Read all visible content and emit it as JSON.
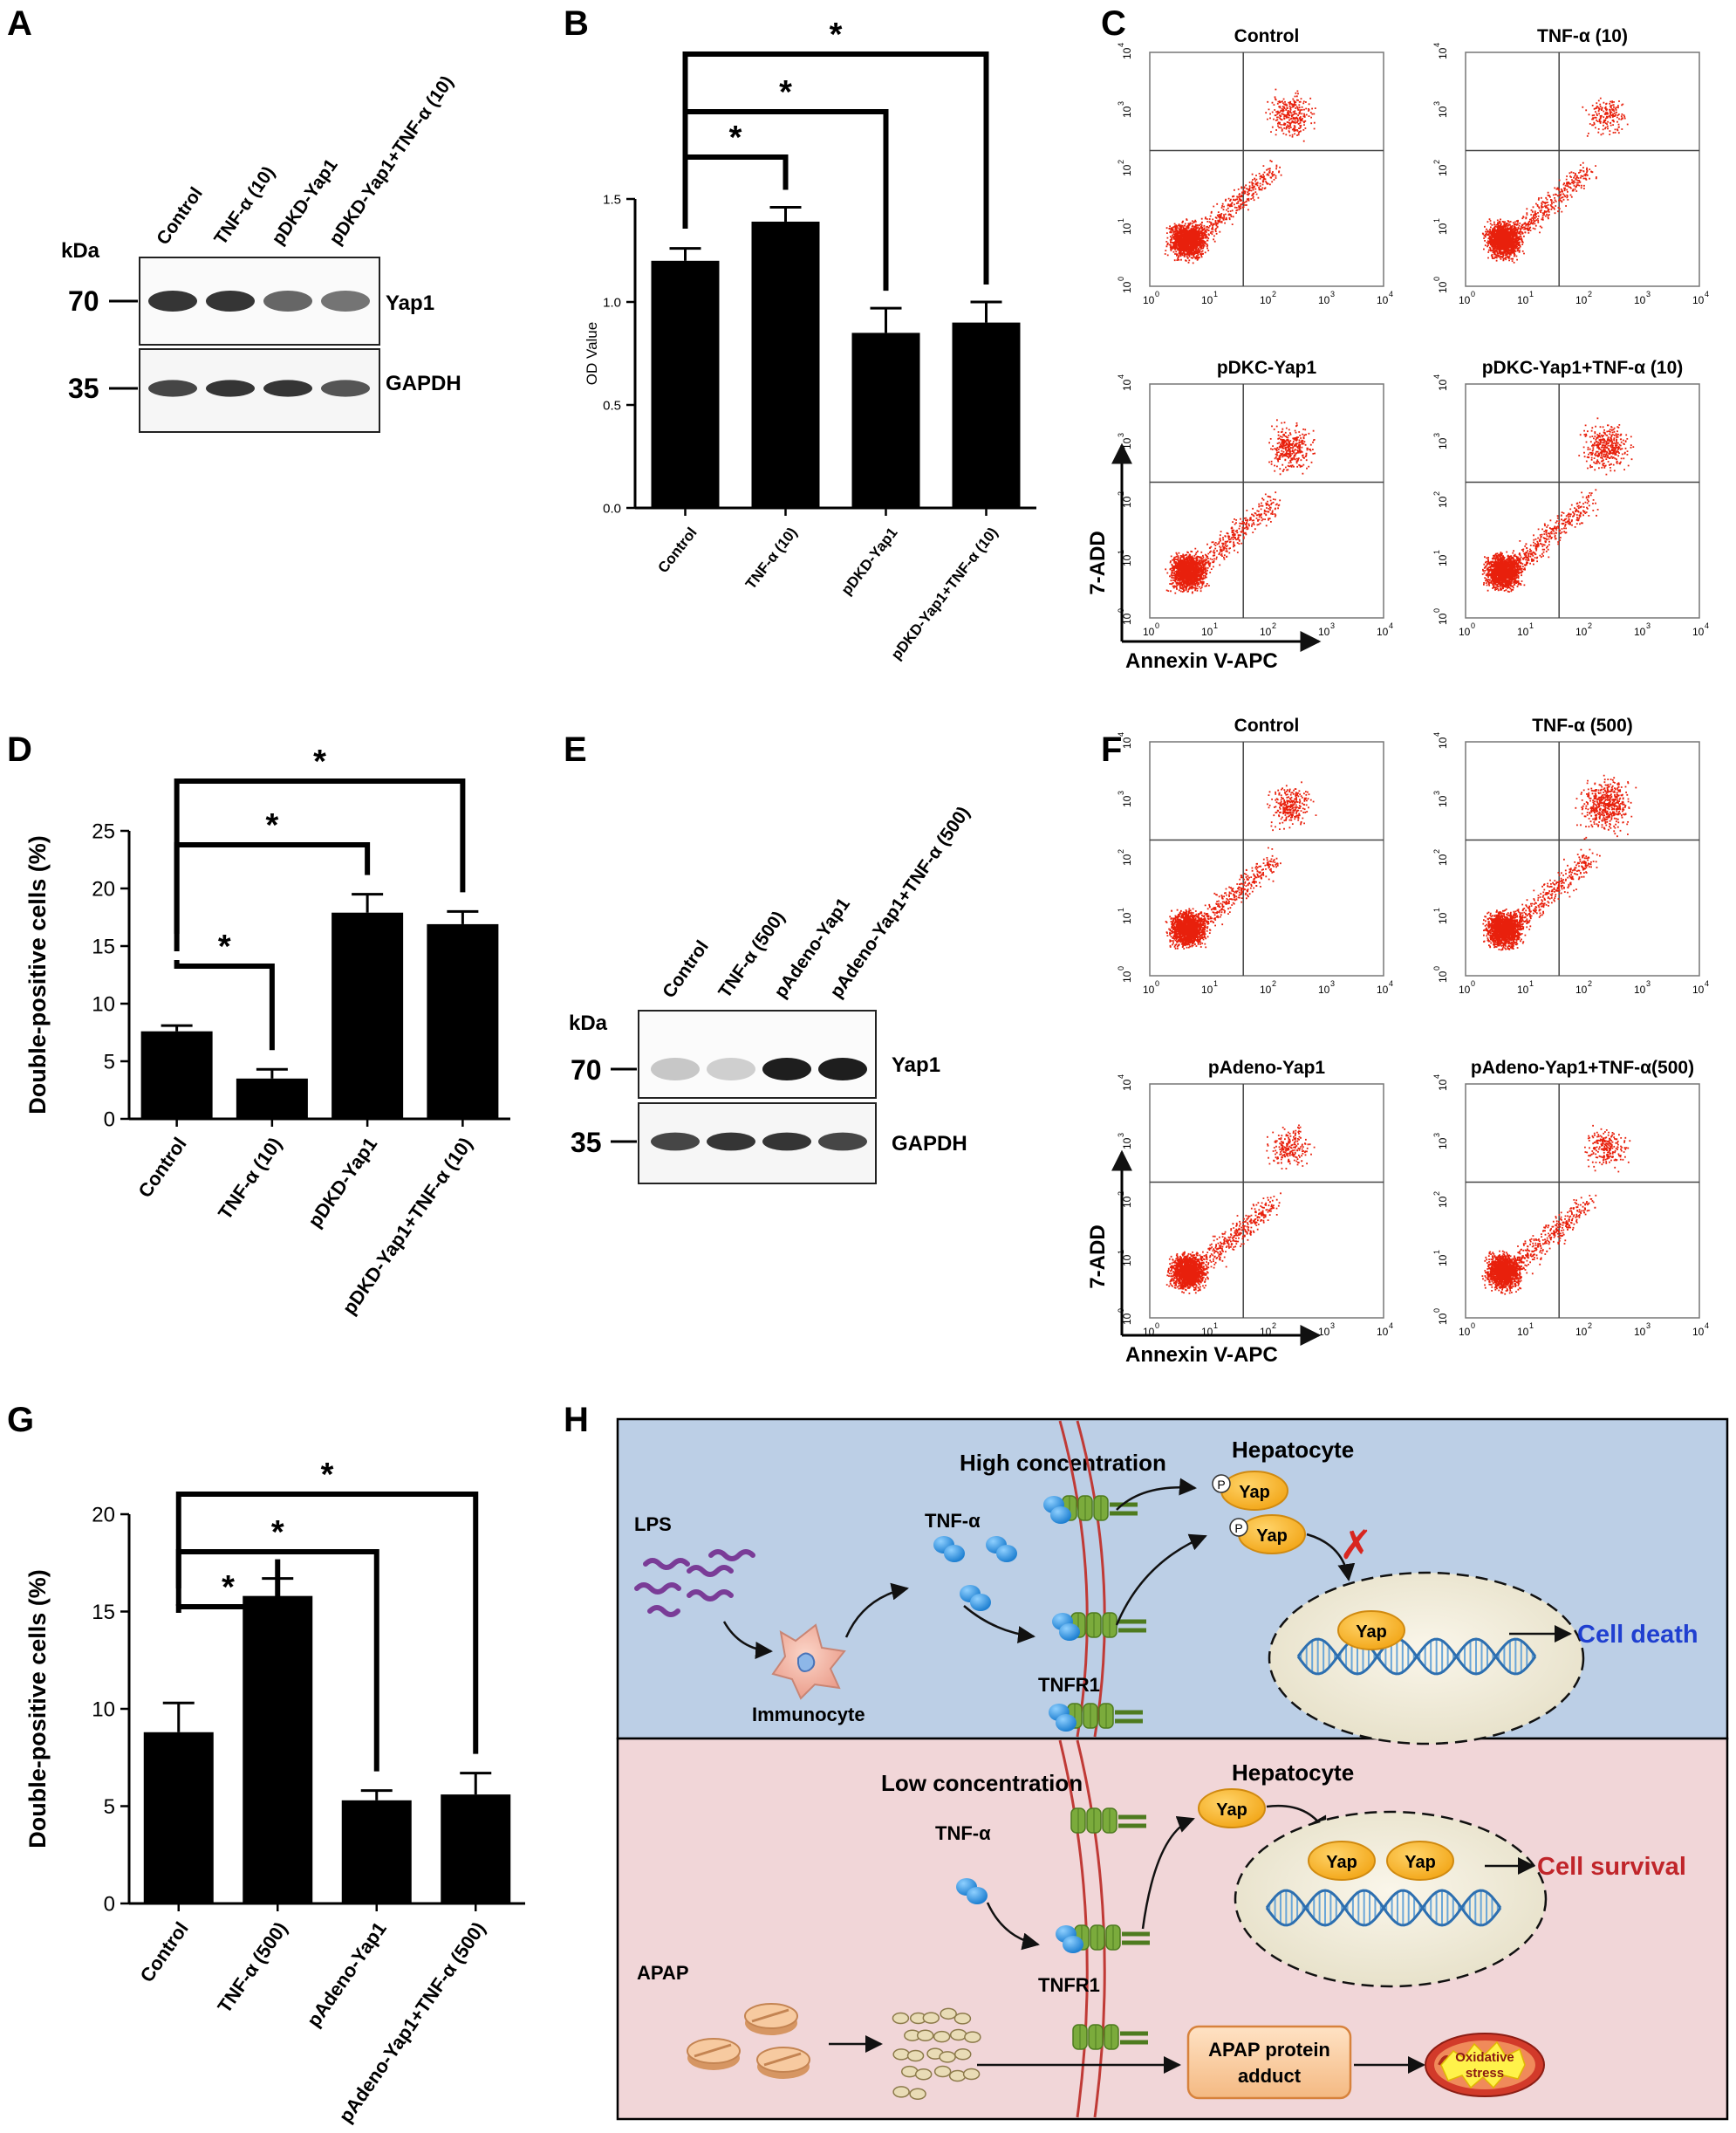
{
  "panels": {
    "A": "A",
    "B": "B",
    "C": "C",
    "D": "D",
    "E": "E",
    "F": "F",
    "G": "G",
    "H": "H"
  },
  "blotA": {
    "kda": "kDa",
    "lanes": [
      "Control",
      "TNF-α (10)",
      "pDKD-Yap1",
      "pDKD-Yap1+TNF-α (10)"
    ],
    "markers": [
      "70",
      "35"
    ],
    "bands": [
      "Yap1",
      "GAPDH"
    ],
    "yap1_intensity": [
      0.85,
      0.85,
      0.7,
      0.65
    ],
    "gapdh_intensity": [
      0.8,
      0.85,
      0.85,
      0.75
    ]
  },
  "blotE": {
    "kda": "kDa",
    "lanes": [
      "Control",
      "TNF-α (500)",
      "pAdeno-Yap1",
      "pAdeno-Yap1+TNF-α (500)"
    ],
    "markers": [
      "70",
      "35"
    ],
    "bands": [
      "Yap1",
      "GAPDH"
    ],
    "yap1_intensity": [
      0.3,
      0.25,
      1.0,
      1.0
    ],
    "gapdh_intensity": [
      0.8,
      0.85,
      0.85,
      0.8
    ]
  },
  "chart_data": [
    {
      "id": "B",
      "type": "bar",
      "categories": [
        "Control",
        "TNF-α (10)",
        "pDKD-Yap1",
        "pDKD-Yap1+TNF-α (10)"
      ],
      "values": [
        1.2,
        1.39,
        0.85,
        0.9
      ],
      "errors": [
        0.06,
        0.07,
        0.12,
        0.1
      ],
      "ylabel": "OD Value",
      "ylim": [
        0,
        1.5
      ],
      "yticks": [
        "0.0",
        "0.5",
        "1.0",
        "1.5"
      ],
      "significance": [
        {
          "from": 0,
          "to": 1,
          "label": "*"
        },
        {
          "from": 0,
          "to": 2,
          "label": "*"
        },
        {
          "from": 0,
          "to": 3,
          "label": "*"
        }
      ]
    },
    {
      "id": "D",
      "type": "bar",
      "categories": [
        "Control",
        "TNF-α (10)",
        "pDKD-Yap1",
        "pDKD-Yap1+TNF-α (10)"
      ],
      "values": [
        7.6,
        3.5,
        17.9,
        16.9
      ],
      "errors": [
        0.5,
        0.8,
        1.6,
        1.1
      ],
      "ylabel": "Double-positive cells (%)",
      "ylim": [
        0,
        25
      ],
      "yticks": [
        "0",
        "5",
        "10",
        "15",
        "20",
        "25"
      ],
      "significance": [
        {
          "from": 0,
          "to": 1,
          "label": "*"
        },
        {
          "from": 0,
          "to": 2,
          "label": "*"
        },
        {
          "from": 0,
          "to": 3,
          "label": "*"
        }
      ]
    },
    {
      "id": "G",
      "type": "bar",
      "categories": [
        "Control",
        "TNF-α (500)",
        "pAdeno-Yap1",
        "pAdeno-Yap1+TNF-α (500)"
      ],
      "values": [
        8.8,
        15.8,
        5.3,
        5.6
      ],
      "errors": [
        1.5,
        0.9,
        0.5,
        1.1
      ],
      "ylabel": "Double-positive cells (%)",
      "ylim": [
        0,
        20
      ],
      "yticks": [
        "0",
        "5",
        "10",
        "15",
        "20"
      ],
      "significance": [
        {
          "from": 0,
          "to": 1,
          "label": "*"
        },
        {
          "from": 0,
          "to": 2,
          "label": "*"
        },
        {
          "from": 0,
          "to": 3,
          "label": "*"
        }
      ]
    },
    {
      "id": "C",
      "type": "scatter",
      "plots": [
        "Control",
        "TNF-α (10)",
        "pDKC-Yap1",
        "pDKC-Yap1+TNF-α (10)"
      ],
      "xlabel": "Annexin V-APC",
      "ylabel": "7-ADD",
      "axis_ticks": [
        "10",
        "0",
        "1",
        "2",
        "3",
        "4"
      ],
      "upper_right_density": [
        0.35,
        0.12,
        0.45,
        0.5
      ]
    },
    {
      "id": "F",
      "type": "scatter",
      "plots": [
        "Control",
        "TNF-α (500)",
        "pAdeno-Yap1",
        "pAdeno-Yap1+TNF-α(500)"
      ],
      "xlabel": "Annexin V-APC",
      "ylabel": "7-ADD",
      "axis_ticks": [
        "10",
        "0",
        "1",
        "2",
        "3",
        "4"
      ],
      "upper_right_density": [
        0.3,
        0.75,
        0.18,
        0.22
      ]
    }
  ],
  "diagram": {
    "top": {
      "high_concentration": "High concentration",
      "hepatocyte": "Hepatocyte",
      "lps": "LPS",
      "tnf": "TNF-α",
      "immunocyte": "Immunocyte",
      "tnfr1": "TNFR1",
      "p": "P",
      "yap": "Yap",
      "blocked": "✗",
      "cell_death": "Cell death"
    },
    "bottom": {
      "low_concentration": "Low concentration",
      "hepatocyte": "Hepatocyte",
      "tnf": "TNF-α",
      "tnfr1": "TNFR1",
      "yap": "Yap",
      "cell_survival": "Cell survival",
      "apap": "APAP",
      "adduct_line1": "APAP protein",
      "adduct_line2": "adduct",
      "oxidative1": "Oxidative",
      "oxidative2": "stress"
    },
    "colors": {
      "top_bg": "#bccfe6",
      "bottom_bg": "#f1d6d8",
      "yap": "#f5b323",
      "tnf": "#2a8ee0",
      "receptor": "#7bab3c",
      "membrane": "#c03a36",
      "death": "#1f3fd0",
      "survival": "#c0252a",
      "lps": "#7a3c97"
    }
  }
}
